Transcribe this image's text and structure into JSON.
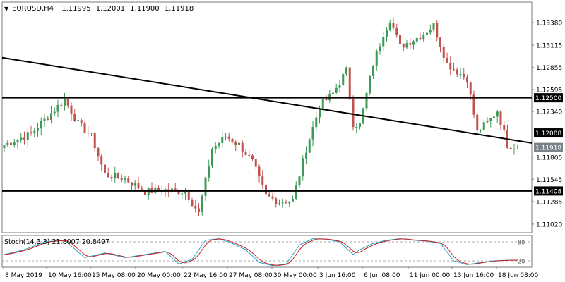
{
  "chart_data": {
    "type": "candlestick",
    "title": "EURUSD,H4",
    "ohlc_header": [
      "1.11995",
      "1.12001",
      "1.11900",
      "1.11918"
    ],
    "colors": {
      "background": "#ffffff",
      "up": "#3d9a57",
      "down": "#c2524e",
      "frame": "#7a7a7a",
      "level": "#000000",
      "stoch_main": "#24a0c8",
      "stoch_signal": "#cc1f1f",
      "stoch_level": "#a8a8a8",
      "label_bg": "#7a8388",
      "label_text": "#ffffff"
    },
    "y_axis": {
      "min": 1.1092,
      "max": 1.1362
    },
    "y_ticks": [
      "1.13380",
      "1.13115",
      "1.12855",
      "1.12595",
      "1.12340",
      "1.11805",
      "1.11545",
      "1.11285",
      "1.11020"
    ],
    "x_ticks": [
      "8 May 2019",
      "10 May 16:00",
      "15 May 08:00",
      "20 May 00:00",
      "22 May 16:00",
      "27 May 08:00",
      "30 May 00:00",
      "3 Jun 16:00",
      "6 Jun 08:00",
      "11 Jun 00:00",
      "13 Jun 16:00",
      "18 Jun 08:00"
    ],
    "horizontal_levels": [
      {
        "label": "1.12500",
        "value": 1.125,
        "style": "solid"
      },
      {
        "label": "1.12088",
        "value": 1.12088,
        "style": "dashed"
      },
      {
        "label": "1.11408",
        "value": 1.11408,
        "style": "solid"
      }
    ],
    "current_price_label": "1.11918",
    "current_price": 1.11918,
    "trendline": {
      "start": {
        "bar": 0,
        "price": 1.1297
      },
      "end": {
        "bar": 151,
        "price": 1.1197
      }
    },
    "anchor_points": [
      [
        0,
        1.1195
      ],
      [
        8,
        1.1208
      ],
      [
        14,
        1.1232
      ],
      [
        18,
        1.1248
      ],
      [
        22,
        1.122
      ],
      [
        26,
        1.1205
      ],
      [
        30,
        1.116
      ],
      [
        36,
        1.1155
      ],
      [
        42,
        1.114
      ],
      [
        48,
        1.1142
      ],
      [
        54,
        1.114
      ],
      [
        58,
        1.1115
      ],
      [
        62,
        1.119
      ],
      [
        66,
        1.1205
      ],
      [
        70,
        1.1195
      ],
      [
        74,
        1.1175
      ],
      [
        78,
        1.1135
      ],
      [
        82,
        1.1128
      ],
      [
        86,
        1.113
      ],
      [
        90,
        1.119
      ],
      [
        94,
        1.124
      ],
      [
        98,
        1.1255
      ],
      [
        102,
        1.1282
      ],
      [
        104,
        1.122
      ],
      [
        106,
        1.1218
      ],
      [
        110,
        1.129
      ],
      [
        113,
        1.1325
      ],
      [
        115,
        1.1342
      ],
      [
        118,
        1.131
      ],
      [
        124,
        1.1322
      ],
      [
        128,
        1.1335
      ],
      [
        132,
        1.129
      ],
      [
        136,
        1.1278
      ],
      [
        138,
        1.1272
      ],
      [
        141,
        1.121
      ],
      [
        145,
        1.1225
      ],
      [
        147,
        1.1235
      ],
      [
        150,
        1.1195
      ],
      [
        153,
        1.1192
      ]
    ],
    "bar_count": 154,
    "stochastic": {
      "label": "Stoch(14,3,3) 21.8007 20.8497",
      "levels": [
        80,
        20
      ],
      "level_labels": [
        "80",
        "20"
      ],
      "y_range": [
        0,
        100
      ],
      "main_anchor": [
        [
          0,
          40
        ],
        [
          6,
          55
        ],
        [
          12,
          80
        ],
        [
          18,
          85
        ],
        [
          24,
          30
        ],
        [
          30,
          45
        ],
        [
          36,
          30
        ],
        [
          42,
          40
        ],
        [
          48,
          50
        ],
        [
          52,
          10
        ],
        [
          56,
          25
        ],
        [
          60,
          85
        ],
        [
          64,
          90
        ],
        [
          68,
          75
        ],
        [
          72,
          55
        ],
        [
          76,
          15
        ],
        [
          80,
          5
        ],
        [
          84,
          10
        ],
        [
          88,
          70
        ],
        [
          92,
          90
        ],
        [
          96,
          88
        ],
        [
          100,
          80
        ],
        [
          104,
          40
        ],
        [
          106,
          55
        ],
        [
          110,
          75
        ],
        [
          114,
          85
        ],
        [
          118,
          90
        ],
        [
          122,
          85
        ],
        [
          126,
          82
        ],
        [
          130,
          75
        ],
        [
          134,
          20
        ],
        [
          138,
          8
        ],
        [
          142,
          15
        ],
        [
          146,
          20
        ],
        [
          150,
          22
        ],
        [
          153,
          22
        ]
      ]
    }
  }
}
